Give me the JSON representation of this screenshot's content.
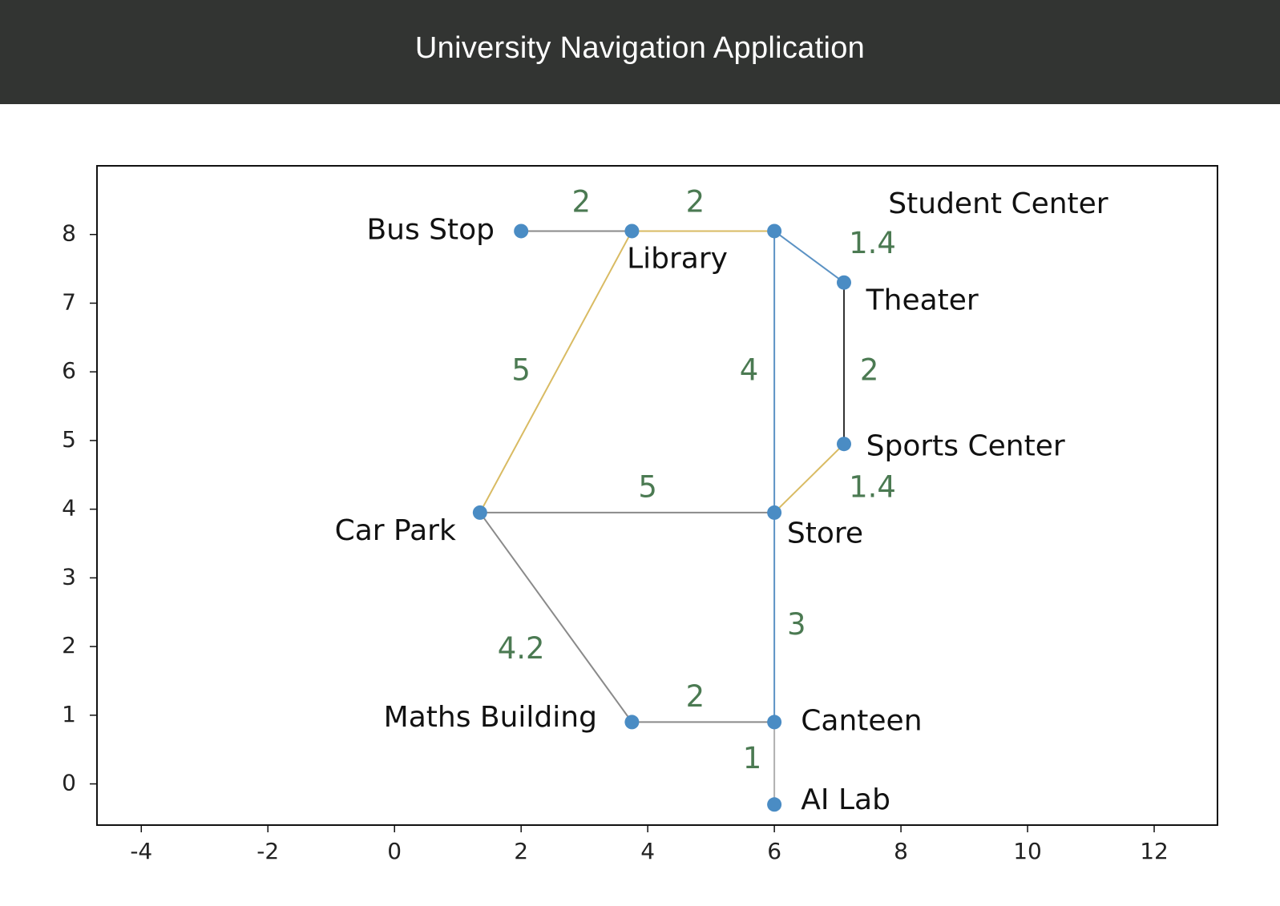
{
  "header": {
    "title": "University Navigation Application"
  },
  "colors": {
    "header_bg": "#323432",
    "node": "#4a8cc4",
    "weight_text": "#4b7a52",
    "edge_gray": "#8a8a8a",
    "edge_yellow": "#d9bb63",
    "edge_blue": "#5b92c4",
    "edge_dark": "#333333",
    "edge_light_gray": "#b0b0b0"
  },
  "chart_data": {
    "type": "graph",
    "xlim": [
      -4.7,
      13
    ],
    "ylim": [
      -0.6,
      9.0
    ],
    "xticks": [
      "-4",
      "-2",
      "0",
      "2",
      "4",
      "6",
      "8",
      "10",
      "12"
    ],
    "yticks": [
      "0",
      "1",
      "2",
      "3",
      "4",
      "5",
      "6",
      "7",
      "8"
    ],
    "nodes": [
      {
        "id": "bus_stop",
        "label": "Bus Stop",
        "x": 2.0,
        "y": 8.05,
        "lx": -0.42,
        "ly": 0.0,
        "anchor": "end"
      },
      {
        "id": "library",
        "label": "Library",
        "x": 3.75,
        "y": 8.05,
        "lx": -0.08,
        "ly": -0.42,
        "anchor": "start"
      },
      {
        "id": "student_center",
        "label": "Student Center",
        "x": 6.0,
        "y": 8.05,
        "lx": 1.8,
        "ly": 0.38,
        "anchor": "start"
      },
      {
        "id": "theater",
        "label": "Theater",
        "x": 7.1,
        "y": 7.3,
        "lx": 0.35,
        "ly": -0.28,
        "anchor": "start"
      },
      {
        "id": "sports_center",
        "label": "Sports Center",
        "x": 7.1,
        "y": 4.95,
        "lx": 0.35,
        "ly": -0.05,
        "anchor": "start"
      },
      {
        "id": "car_park",
        "label": "Car Park",
        "x": 1.35,
        "y": 3.95,
        "lx": -0.38,
        "ly": -0.28,
        "anchor": "end"
      },
      {
        "id": "store",
        "label": "Store",
        "x": 6.0,
        "y": 3.95,
        "lx": 0.2,
        "ly": -0.32,
        "anchor": "start"
      },
      {
        "id": "maths_building",
        "label": "Maths Building",
        "x": 3.75,
        "y": 0.9,
        "lx": -0.55,
        "ly": 0.05,
        "anchor": "end"
      },
      {
        "id": "canteen",
        "label": "Canteen",
        "x": 6.0,
        "y": 0.9,
        "lx": 0.42,
        "ly": 0.0,
        "anchor": "start"
      },
      {
        "id": "ai_lab",
        "label": "AI Lab",
        "x": 6.0,
        "y": -0.3,
        "lx": 0.42,
        "ly": 0.05,
        "anchor": "start"
      }
    ],
    "edges": [
      {
        "from": "bus_stop",
        "to": "library",
        "weight": "2",
        "color": "gray",
        "wx": 2.95,
        "wy": 8.45
      },
      {
        "from": "library",
        "to": "student_center",
        "weight": "2",
        "color": "yellow",
        "wx": 4.75,
        "wy": 8.45
      },
      {
        "from": "student_center",
        "to": "theater",
        "weight": "1.4",
        "color": "blue",
        "wx": 7.55,
        "wy": 7.85
      },
      {
        "from": "theater",
        "to": "sports_center",
        "weight": "2",
        "color": "dark",
        "wx": 7.5,
        "wy": 6.0
      },
      {
        "from": "student_center",
        "to": "store",
        "weight": "4",
        "color": "blue",
        "wx": 5.6,
        "wy": 6.0
      },
      {
        "from": "library",
        "to": "car_park",
        "weight": "5",
        "color": "yellow",
        "wx": 2.0,
        "wy": 6.0
      },
      {
        "from": "car_park",
        "to": "store",
        "weight": "5",
        "color": "gray",
        "wx": 4.0,
        "wy": 4.3
      },
      {
        "from": "store",
        "to": "sports_center",
        "weight": "1.4",
        "color": "yellow",
        "wx": 7.55,
        "wy": 4.3
      },
      {
        "from": "car_park",
        "to": "maths_building",
        "weight": "4.2",
        "color": "gray",
        "wx": 2.0,
        "wy": 1.95
      },
      {
        "from": "maths_building",
        "to": "canteen",
        "weight": "2",
        "color": "gray",
        "wx": 4.75,
        "wy": 1.25
      },
      {
        "from": "store",
        "to": "canteen",
        "weight": "3",
        "color": "blue",
        "wx": 6.35,
        "wy": 2.3
      },
      {
        "from": "canteen",
        "to": "ai_lab",
        "weight": "1",
        "color": "light_gray",
        "wx": 5.65,
        "wy": 0.35
      }
    ]
  }
}
